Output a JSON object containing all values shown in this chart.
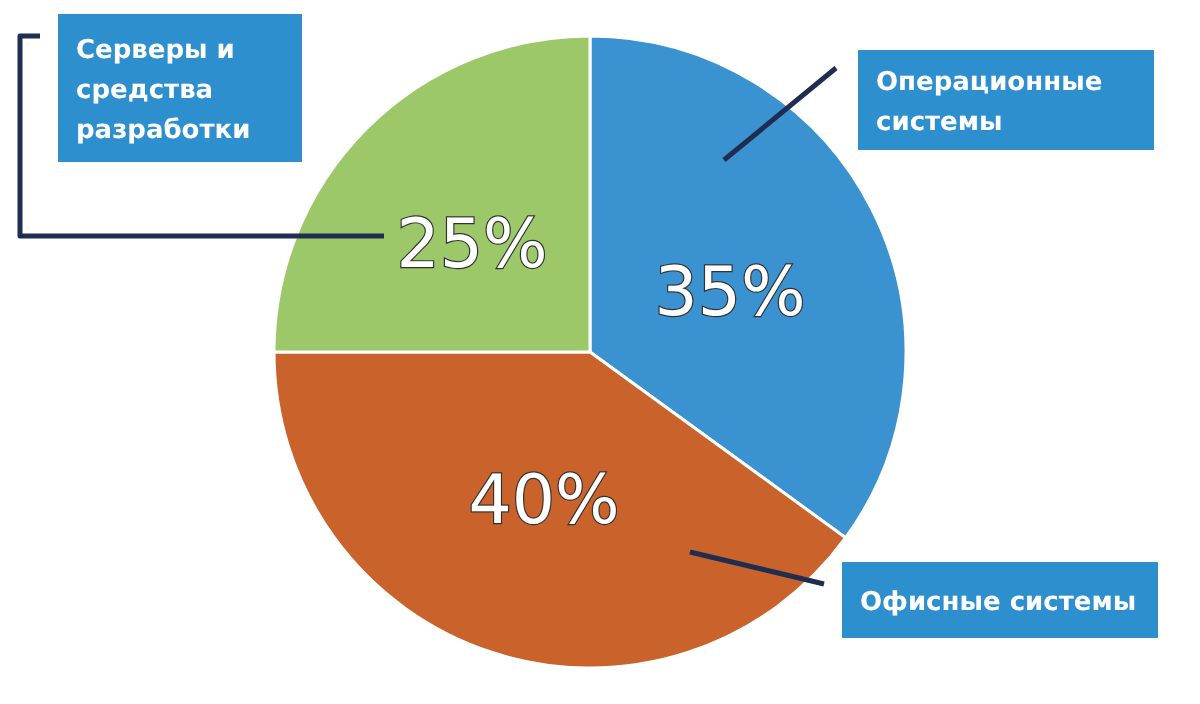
{
  "chart_data": {
    "type": "pie",
    "categories": [
      "Операционные системы",
      "Офисные системы",
      "Серверы и средства разработки"
    ],
    "values": [
      35,
      40,
      25
    ],
    "colors": [
      "#3b92d0",
      "#c9622b",
      "#9dc86a"
    ],
    "value_labels": [
      "35%",
      "40%",
      "25%"
    ]
  }
}
